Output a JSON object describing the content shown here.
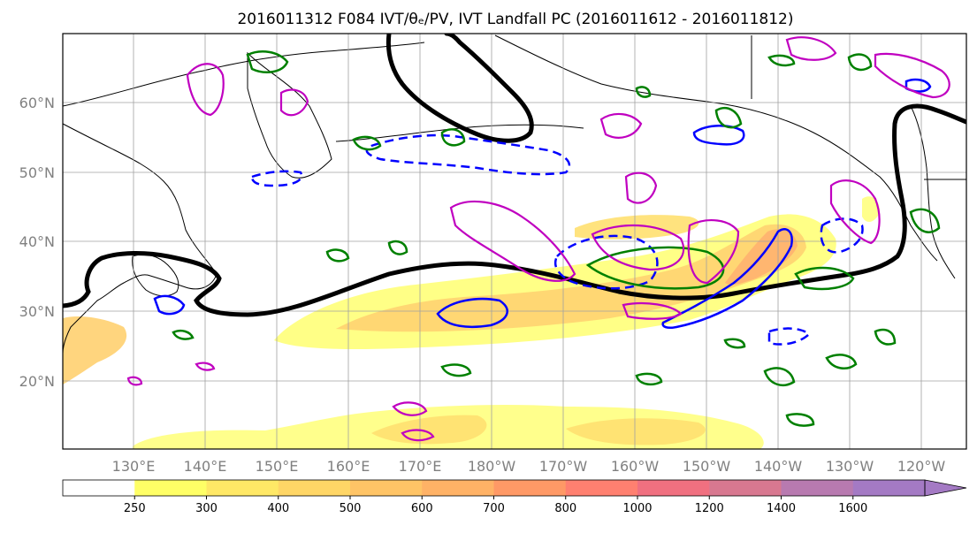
{
  "title": "2016011312 F084 IVT/θₑ/PV, IVT Landfall PC (2016011612 - 2016011812)",
  "map": {
    "lat_labels": [
      "60°N",
      "50°N",
      "40°N",
      "30°N",
      "20°N"
    ],
    "lon_labels": [
      "130°E",
      "140°E",
      "150°E",
      "160°E",
      "170°E",
      "180°W",
      "170°W",
      "160°W",
      "150°W",
      "140°W",
      "130°W",
      "120°W"
    ],
    "colors": {
      "land_outline": "#000000",
      "grid": "#a0a0a0",
      "thick_contour": "#000000",
      "blue_contour": "#0000ff",
      "green_contour": "#008000",
      "magenta_contour": "#c000c0"
    }
  },
  "colorbar": {
    "tick_labels": [
      "250",
      "300",
      "400",
      "500",
      "600",
      "700",
      "800",
      "1000",
      "1200",
      "1400",
      "1600"
    ],
    "colors": [
      "#ffffff",
      "#ffff66",
      "#ffe866",
      "#ffd666",
      "#ffc466",
      "#ffb266",
      "#ff9966",
      "#ff8070",
      "#f07080",
      "#d87890",
      "#b87ab0",
      "#a47ac4"
    ],
    "extend": "max"
  },
  "ivt_levels_hex": [
    "#ffff80",
    "#ffe070",
    "#ffc870",
    "#ffb070"
  ]
}
